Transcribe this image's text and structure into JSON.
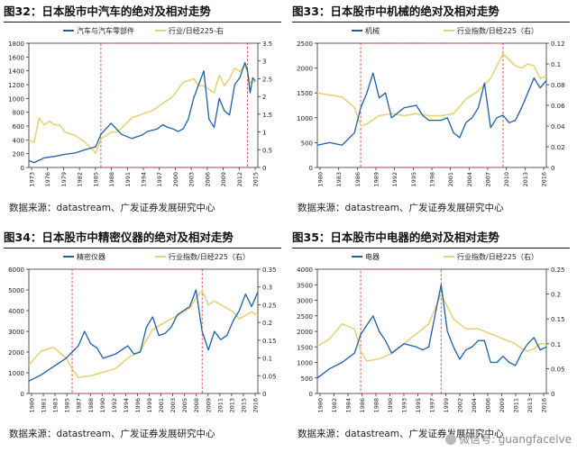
{
  "source_text": "数据来源：datastream、广发证券发展研究中心",
  "watermark": "微信号: guangfacelve",
  "colors": {
    "left": "#1f5fa8",
    "right": "#e8d37a",
    "rect": "#e03a3a",
    "axis": "#333333"
  },
  "chart_data": [
    {
      "type": "line",
      "title": "图32：日本股市中汽车的绝对及相对走势",
      "x_ticks": [
        "1973",
        "1976",
        "1979",
        "1982",
        "1985",
        "1988",
        "1991",
        "1994",
        "1997",
        "2000",
        "2003",
        "2006",
        "2009",
        "2012",
        "2015"
      ],
      "x_range": [
        1973,
        2017.5
      ],
      "y_left": {
        "ticks": [
          "0",
          "200",
          "400",
          "600",
          "800",
          "1000",
          "1200",
          "1400",
          "1600",
          "1800"
        ],
        "range": [
          0,
          1800
        ]
      },
      "y_right": {
        "ticks": [
          "0",
          "0.5",
          "1",
          "1.5",
          "2",
          "2.5",
          "3",
          "3.5"
        ],
        "range": [
          0,
          3.5
        ]
      },
      "series": [
        {
          "name": "汽车与汽车零部件",
          "axis": "left",
          "x": [
            1973,
            1974,
            1976,
            1978,
            1980,
            1982,
            1984,
            1986,
            1987,
            1988,
            1989,
            1990,
            1991,
            1993,
            1995,
            1996,
            1998,
            1999,
            2000,
            2001,
            2002,
            2003,
            2004,
            2005,
            2006,
            2007,
            2008,
            2009,
            2010,
            2011,
            2012,
            2013,
            2014,
            2015,
            2015.5,
            2016,
            2016.5,
            2017
          ],
          "y": [
            100,
            70,
            140,
            160,
            190,
            210,
            260,
            300,
            480,
            560,
            640,
            560,
            480,
            420,
            470,
            520,
            560,
            620,
            580,
            560,
            520,
            560,
            700,
            1000,
            1200,
            1400,
            700,
            580,
            1000,
            820,
            760,
            1200,
            1300,
            1520,
            1400,
            1080,
            1300,
            1250
          ]
        },
        {
          "name": "行业/日经225-右",
          "axis": "right",
          "x": [
            1973,
            1974,
            1975,
            1976,
            1977,
            1978,
            1979,
            1980,
            1982,
            1984,
            1986,
            1987,
            1988,
            1989,
            1990,
            1991,
            1993,
            1995,
            1997,
            1999,
            2001,
            2003,
            2005,
            2006,
            2007,
            2008,
            2009,
            2010,
            2011,
            2012,
            2013,
            2014,
            2015,
            2016,
            2017
          ],
          "y": [
            0.8,
            0.7,
            1.4,
            1.2,
            1.3,
            1.2,
            1.2,
            1.0,
            0.9,
            0.7,
            0.4,
            0.8,
            0.9,
            1.0,
            1.0,
            1.1,
            1.4,
            1.5,
            1.6,
            1.8,
            2.0,
            2.4,
            2.5,
            2.3,
            2.3,
            2.2,
            2.1,
            2.6,
            2.3,
            2.5,
            2.8,
            2.7,
            2.9,
            2.4,
            2.4
          ]
        }
      ],
      "highlight": {
        "x": [
          1987,
          2015.5
        ],
        "y": [
          0,
          1800
        ]
      }
    },
    {
      "type": "line",
      "title": "图33：日本股市中机械的绝对及相对走势",
      "x_ticks": [
        "1980",
        "1983",
        "1986",
        "1989",
        "1992",
        "1995",
        "1998",
        "2001",
        "2004",
        "2007",
        "2010",
        "2013",
        "2016"
      ],
      "x_range": [
        1980,
        2017
      ],
      "y_left": {
        "ticks": [
          "0",
          "500",
          "1000",
          "1500",
          "2000",
          "2500"
        ],
        "range": [
          0,
          2500
        ]
      },
      "y_right": {
        "ticks": [
          "0",
          "0.02",
          "0.04",
          "0.06",
          "0.08",
          "0.1",
          "0.12"
        ],
        "range": [
          0,
          0.12
        ]
      },
      "series": [
        {
          "name": "机械",
          "axis": "left",
          "x": [
            1980,
            1982,
            1984,
            1986,
            1987,
            1988,
            1989,
            1990,
            1991,
            1992,
            1994,
            1996,
            1997,
            1998,
            2000,
            2001,
            2002,
            2003,
            2004,
            2005,
            2006,
            2007,
            2008,
            2009,
            2010,
            2011,
            2012,
            2013,
            2014,
            2015,
            2016,
            2017
          ],
          "y": [
            450,
            500,
            450,
            700,
            1200,
            1500,
            1900,
            1400,
            1500,
            1000,
            1200,
            1250,
            1050,
            950,
            950,
            1000,
            700,
            600,
            900,
            1000,
            1200,
            1700,
            800,
            1000,
            1050,
            900,
            950,
            1200,
            1500,
            1800,
            1600,
            1750
          ]
        },
        {
          "name": "行业指数/日经225（右）",
          "axis": "right",
          "x": [
            1980,
            1982,
            1984,
            1986,
            1987,
            1988,
            1989,
            1990,
            1992,
            1994,
            1996,
            1998,
            2000,
            2002,
            2004,
            2006,
            2007,
            2008,
            2009,
            2010,
            2012,
            2013,
            2014,
            2015,
            2016,
            2017
          ],
          "y": [
            0.072,
            0.07,
            0.068,
            0.058,
            0.04,
            0.042,
            0.046,
            0.05,
            0.052,
            0.05,
            0.052,
            0.05,
            0.05,
            0.052,
            0.066,
            0.074,
            0.08,
            0.086,
            0.098,
            0.11,
            0.098,
            0.096,
            0.1,
            0.098,
            0.086,
            0.088
          ]
        }
      ],
      "highlight": {
        "x": [
          1987,
          2010
        ],
        "y": [
          0,
          2500
        ]
      }
    },
    {
      "type": "line",
      "title": "图34：日本股市中精密仪器的绝对及相对走势",
      "x_ticks": [
        "1980",
        "1981",
        "1983",
        "1985",
        "1987",
        "1988",
        "1990",
        "1992",
        "1994",
        "1996",
        "1999",
        "2001",
        "2003",
        "2005",
        "2008",
        "2009",
        "2011",
        "2013",
        "2015",
        "2016"
      ],
      "x_range": [
        1980,
        2017
      ],
      "y_left": {
        "ticks": [
          "0",
          "1000",
          "2000",
          "3000",
          "4000",
          "5000",
          "6000"
        ],
        "range": [
          0,
          6000
        ]
      },
      "y_right": {
        "ticks": [
          "0",
          "0.05",
          "0.1",
          "0.15",
          "0.2",
          "0.25",
          "0.3",
          "0.35"
        ],
        "range": [
          0,
          0.35
        ]
      },
      "series": [
        {
          "name": "精密仪器",
          "axis": "left",
          "x": [
            1980,
            1982,
            1984,
            1986,
            1987,
            1988,
            1989,
            1990,
            1991,
            1992,
            1994,
            1996,
            1997,
            1998,
            1999,
            2000,
            2001,
            2002,
            2003,
            2004,
            2005,
            2006,
            2007,
            2008,
            2009,
            2010,
            2011,
            2012,
            2013,
            2014,
            2015,
            2016,
            2017
          ],
          "y": [
            600,
            900,
            1300,
            1700,
            2000,
            2300,
            3000,
            2400,
            2200,
            1700,
            1900,
            2300,
            1900,
            2000,
            3200,
            3700,
            2800,
            2900,
            3200,
            3800,
            4000,
            4200,
            5000,
            3000,
            2100,
            3000,
            2600,
            2800,
            3500,
            4000,
            4800,
            4200,
            4900
          ]
        },
        {
          "name": "行业指数/日经225（右）",
          "axis": "right",
          "x": [
            1980,
            1982,
            1984,
            1986,
            1987,
            1988,
            1990,
            1992,
            1994,
            1996,
            1998,
            2000,
            2002,
            2004,
            2006,
            2007,
            2008,
            2009,
            2010,
            2011,
            2012,
            2013,
            2014,
            2015,
            2016,
            2017
          ],
          "y": [
            0.08,
            0.12,
            0.13,
            0.1,
            0.07,
            0.045,
            0.05,
            0.06,
            0.07,
            0.1,
            0.12,
            0.18,
            0.2,
            0.22,
            0.24,
            0.27,
            0.29,
            0.25,
            0.26,
            0.25,
            0.24,
            0.23,
            0.21,
            0.22,
            0.23,
            0.22
          ]
        }
      ],
      "highlight": {
        "x": [
          1987,
          2008
        ],
        "y": [
          0,
          6000
        ]
      }
    },
    {
      "type": "line",
      "title": "图35：日本股市中电器的绝对及相对走势",
      "x_ticks": [
        "1980",
        "1982",
        "1984",
        "1986",
        "1988",
        "1990",
        "1993",
        "1995",
        "1997",
        "1999",
        "2002",
        "2004",
        "2006",
        "2009",
        "2011",
        "2013",
        "2016"
      ],
      "x_range": [
        1980,
        2017
      ],
      "y_left": {
        "ticks": [
          "0",
          "500",
          "1000",
          "1500",
          "2000",
          "2500",
          "3000",
          "3500",
          "4000"
        ],
        "range": [
          0,
          4000
        ]
      },
      "y_right": {
        "ticks": [
          "0",
          "0.05",
          "0.1",
          "0.15",
          "0.2",
          "0.25"
        ],
        "range": [
          0,
          0.25
        ]
      },
      "series": [
        {
          "name": "电器",
          "axis": "left",
          "x": [
            1980,
            1982,
            1984,
            1986,
            1987,
            1988,
            1989,
            1990,
            1991,
            1992,
            1994,
            1996,
            1997,
            1998,
            1999,
            2000,
            2001,
            2002,
            2003,
            2004,
            2005,
            2006,
            2007,
            2008,
            2009,
            2010,
            2011,
            2012,
            2013,
            2014,
            2015,
            2016,
            2017
          ],
          "y": [
            500,
            800,
            1000,
            1300,
            1900,
            2200,
            2500,
            2000,
            1700,
            1300,
            1600,
            1500,
            1400,
            1500,
            2500,
            3500,
            2000,
            1500,
            1100,
            1400,
            1500,
            1700,
            1700,
            1000,
            1000,
            1200,
            1000,
            900,
            1300,
            1600,
            1800,
            1400,
            1500
          ]
        },
        {
          "name": "行业指数/日经225（右）",
          "axis": "right",
          "x": [
            1980,
            1982,
            1984,
            1986,
            1987,
            1988,
            1990,
            1992,
            1994,
            1996,
            1998,
            2000,
            2002,
            2004,
            2006,
            2008,
            2010,
            2012,
            2013,
            2014,
            2015,
            2016,
            2017
          ],
          "y": [
            0.095,
            0.11,
            0.14,
            0.13,
            0.085,
            0.065,
            0.07,
            0.08,
            0.1,
            0.12,
            0.14,
            0.2,
            0.15,
            0.13,
            0.13,
            0.12,
            0.11,
            0.1,
            0.09,
            0.085,
            0.09,
            0.1,
            0.1
          ]
        }
      ],
      "highlight": {
        "x": [
          1987,
          2000
        ],
        "y": [
          0,
          4000
        ]
      }
    }
  ]
}
